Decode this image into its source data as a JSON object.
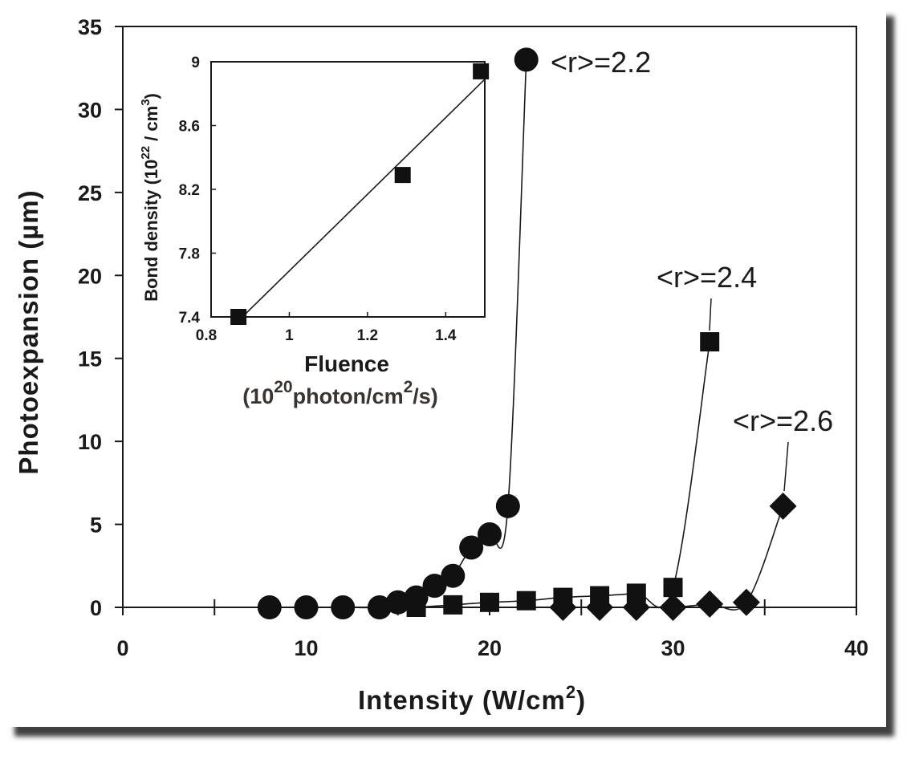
{
  "chart_data": [
    {
      "type": "scatter",
      "title": "",
      "xlabel": "Intensity (W/cm",
      "xlabel_sup": "2",
      "xlabel_suffix": ")",
      "ylabel": "Photoexpansion (µm)",
      "xlim": [
        0,
        40
      ],
      "ylim": [
        0,
        35
      ],
      "x_ticks": [
        "0",
        "10",
        "20",
        "30",
        "40"
      ],
      "y_ticks": [
        "0",
        "5",
        "10",
        "15",
        "20",
        "25",
        "30",
        "35"
      ],
      "series": [
        {
          "name": "<r>=2.2",
          "marker": "circle",
          "points": [
            [
              8,
              0.0
            ],
            [
              10,
              0.0
            ],
            [
              12,
              0.0
            ],
            [
              14,
              0.0
            ],
            [
              15,
              0.3
            ],
            [
              16,
              0.6
            ],
            [
              17,
              1.3
            ],
            [
              18,
              1.9
            ],
            [
              19,
              3.6
            ],
            [
              20,
              4.4
            ],
            [
              21,
              6.1
            ],
            [
              22,
              33.0
            ]
          ]
        },
        {
          "name": "<r>=2.4",
          "marker": "square",
          "points": [
            [
              16,
              0.0
            ],
            [
              18,
              0.15
            ],
            [
              20,
              0.3
            ],
            [
              22,
              0.4
            ],
            [
              24,
              0.6
            ],
            [
              26,
              0.7
            ],
            [
              28,
              0.85
            ],
            [
              30,
              1.2
            ],
            [
              32,
              16.0
            ]
          ]
        },
        {
          "name": "<r>=2.6",
          "marker": "diamond",
          "points": [
            [
              24,
              0.0
            ],
            [
              26,
              0.0
            ],
            [
              28,
              0.0
            ],
            [
              30,
              0.0
            ],
            [
              32,
              0.2
            ],
            [
              34,
              0.3
            ],
            [
              36,
              6.1
            ]
          ]
        }
      ]
    },
    {
      "type": "scatter",
      "title": "",
      "xlabel": "Fluence",
      "xlabel_line2_pre": "(10",
      "xlabel_line2_sup": "20",
      "xlabel_line2_mid": "photon/cm",
      "xlabel_line2_sup2": "2",
      "xlabel_line2_post": "/s)",
      "ylabel": "Bond density (10",
      "ylabel_sup": "22",
      "ylabel_mid": " / cm",
      "ylabel_sup2": "3",
      "ylabel_post": ")",
      "xlim": [
        0.8,
        1.5
      ],
      "ylim": [
        7.4,
        9.0
      ],
      "x_ticks": [
        "0.8",
        "1",
        "1.2",
        "1.4"
      ],
      "y_ticks": [
        "7.4",
        "7.8",
        "8.2",
        "8.6",
        "9"
      ],
      "marker": "square",
      "points": [
        [
          0.87,
          7.4
        ],
        [
          1.29,
          8.29
        ],
        [
          1.49,
          8.94
        ]
      ],
      "fit_line": [
        [
          0.88,
          7.4
        ],
        [
          1.5,
          8.89
        ]
      ]
    }
  ]
}
